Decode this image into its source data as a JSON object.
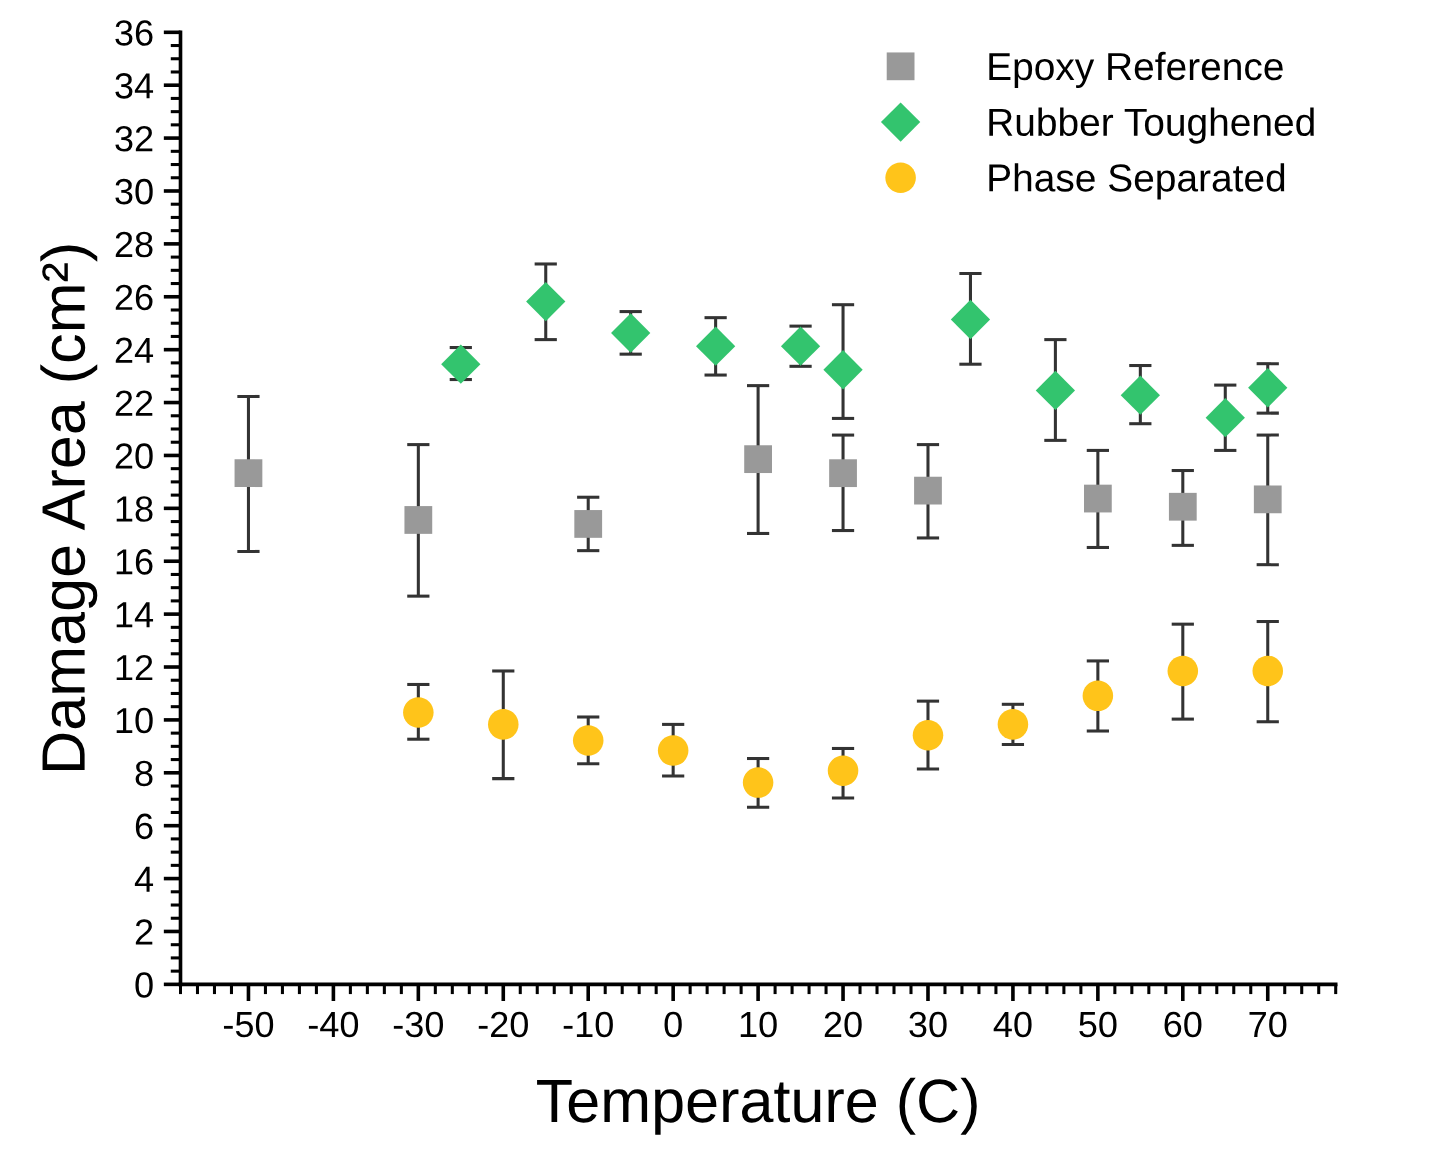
{
  "chart_data": {
    "type": "scatter",
    "xlabel": "Temperature (C)",
    "ylabel": "Damage Area (cm²)",
    "xlim": [
      -58,
      78
    ],
    "xticks": [
      -50,
      -40,
      -30,
      -20,
      -10,
      0,
      10,
      20,
      30,
      40,
      50,
      60,
      70
    ],
    "ylim": [
      0,
      36
    ],
    "yticks": [
      0,
      2,
      4,
      6,
      8,
      10,
      12,
      14,
      16,
      18,
      20,
      22,
      24,
      26,
      28,
      30,
      32,
      34,
      36
    ],
    "grid": false,
    "legend": "top right",
    "series": [
      {
        "name": "Epoxy Reference",
        "color": "#999999",
        "marker": "square",
        "x": [
          -50,
          -30,
          -10,
          10,
          20,
          30,
          50,
          60,
          70
        ],
        "values": [
          19.33,
          17.56,
          17.41,
          19.86,
          19.33,
          18.67,
          18.37,
          18.06,
          18.34
        ],
        "errors": [
          [
            16.37,
            22.23
          ],
          [
            14.68,
            20.41
          ],
          [
            16.4,
            18.42
          ],
          [
            17.05,
            22.64
          ],
          [
            17.16,
            20.77
          ],
          [
            16.88,
            20.41
          ],
          [
            16.52,
            20.19
          ],
          [
            16.6,
            19.43
          ],
          [
            15.87,
            20.77
          ]
        ]
      },
      {
        "name": "Rubber Toughened",
        "color": "#33c46e",
        "marker": "diamond",
        "x": [
          -25,
          -15,
          -5,
          5,
          15,
          20,
          35,
          45,
          55,
          65,
          70
        ],
        "values": [
          23.45,
          25.82,
          24.63,
          24.13,
          24.13,
          23.24,
          25.14,
          22.46,
          22.28,
          21.43,
          22.56
        ],
        "errors": [
          [
            22.87,
            24.08
          ],
          [
            24.38,
            27.24
          ],
          [
            23.83,
            25.44
          ],
          [
            23.04,
            25.21
          ],
          [
            23.37,
            24.89
          ],
          [
            21.4,
            25.7
          ],
          [
            23.45,
            26.88
          ],
          [
            20.57,
            24.38
          ],
          [
            21.2,
            23.4
          ],
          [
            20.19,
            22.66
          ],
          [
            21.6,
            23.47
          ]
        ]
      },
      {
        "name": "Phase Separated",
        "color": "#ffc41a",
        "marker": "circle",
        "x": [
          -30,
          -20,
          -10,
          0,
          10,
          20,
          30,
          40,
          50,
          60,
          70
        ],
        "values": [
          10.28,
          9.83,
          9.22,
          8.84,
          7.63,
          8.08,
          9.42,
          9.83,
          10.91,
          11.85,
          11.85
        ],
        "errors": [
          [
            9.27,
            11.34
          ],
          [
            7.78,
            11.85
          ],
          [
            8.34,
            10.11
          ],
          [
            7.88,
            9.83
          ],
          [
            6.7,
            8.54
          ],
          [
            7.05,
            8.92
          ],
          [
            8.14,
            10.71
          ],
          [
            9.07,
            10.59
          ],
          [
            9.58,
            12.23
          ],
          [
            10.03,
            13.62
          ],
          [
            9.93,
            13.72
          ]
        ]
      }
    ]
  }
}
